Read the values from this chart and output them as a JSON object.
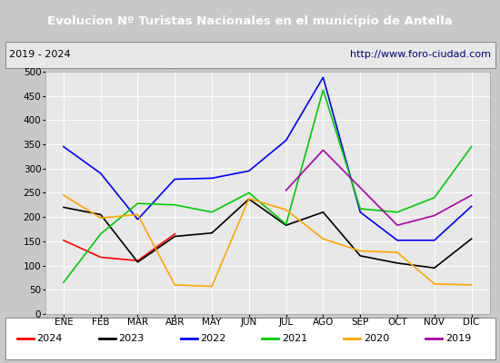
{
  "title": "Evolucion Nº Turistas Nacionales en el municipio de Antella",
  "subtitle_left": "2019 - 2024",
  "subtitle_right": "http://www.foro-ciudad.com",
  "months": [
    "ENE",
    "FEB",
    "MAR",
    "ABR",
    "MAY",
    "JUN",
    "JUL",
    "AGO",
    "SEP",
    "OCT",
    "NOV",
    "DIC"
  ],
  "series": {
    "2024": [
      152,
      117,
      110,
      165,
      null,
      null,
      null,
      null,
      null,
      null,
      null,
      null
    ],
    "2023": [
      220,
      205,
      107,
      160,
      167,
      237,
      183,
      210,
      120,
      105,
      95,
      155
    ],
    "2022": [
      345,
      290,
      195,
      278,
      280,
      295,
      358,
      488,
      210,
      152,
      152,
      222
    ],
    "2021": [
      65,
      165,
      228,
      225,
      210,
      250,
      185,
      462,
      217,
      210,
      240,
      345
    ],
    "2020": [
      245,
      198,
      205,
      60,
      57,
      238,
      215,
      155,
      130,
      127,
      62,
      60
    ],
    "2019": [
      null,
      null,
      null,
      null,
      null,
      null,
      255,
      338,
      null,
      183,
      203,
      245
    ]
  },
  "colors": {
    "2024": "#ff0000",
    "2023": "#000000",
    "2022": "#0000ff",
    "2021": "#00cc00",
    "2020": "#ffa500",
    "2019": "#aa00aa"
  },
  "ylim": [
    0,
    500
  ],
  "yticks": [
    0,
    50,
    100,
    150,
    200,
    250,
    300,
    350,
    400,
    450,
    500
  ],
  "title_bg": "#4d9ed4",
  "title_color": "#ffffff",
  "subtitle_bg": "#e8e8e8",
  "plot_bg": "#e8e8e8",
  "grid_color": "#ffffff",
  "fig_bg": "#c8c8c8",
  "border_color": "#5599bb"
}
